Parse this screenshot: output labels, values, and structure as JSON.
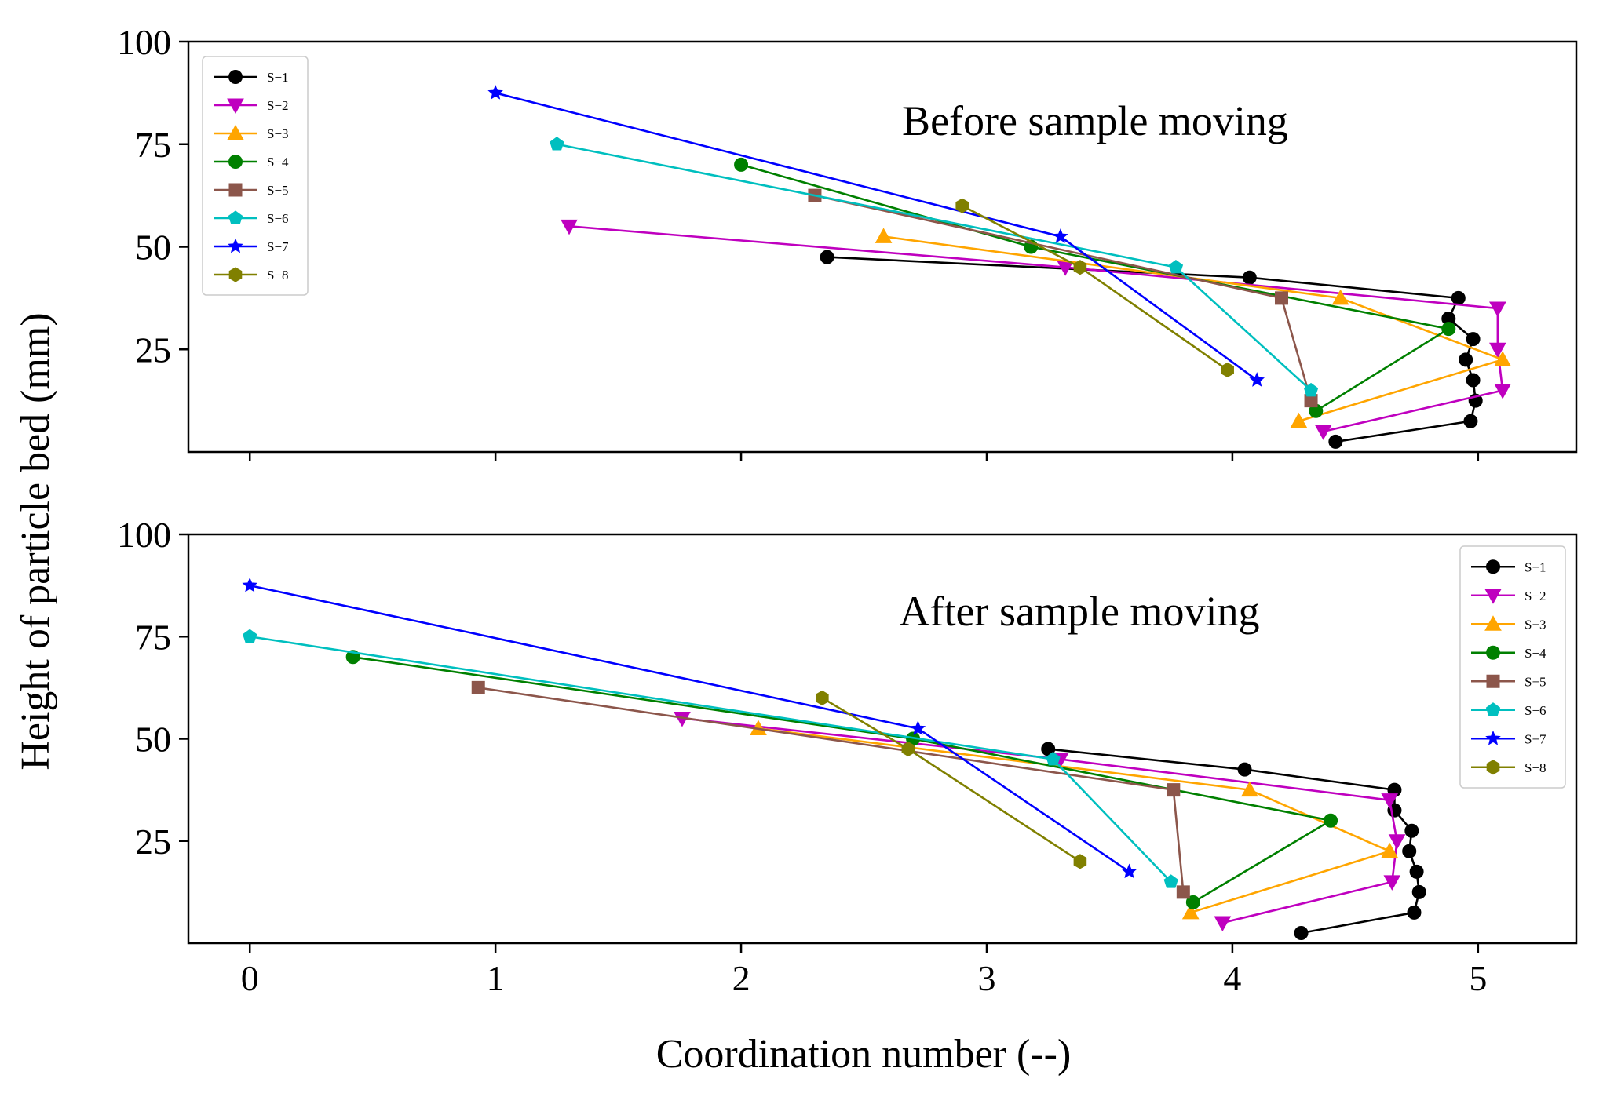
{
  "chart_data": [
    {
      "type": "line",
      "annotation": "Before sample moving",
      "xlabel": "Coordination number (--)",
      "ylabel": "Height of particle bed (mm)",
      "xlim": [
        -0.25,
        5.4
      ],
      "ylim": [
        0,
        100
      ],
      "xticks": [
        "0",
        "1",
        "2",
        "3",
        "4",
        "5"
      ],
      "yticks": [
        "25",
        "50",
        "75",
        "100"
      ],
      "legend_position": "upper-left",
      "series": [
        {
          "name": "S−1",
          "color": "#000000",
          "marker": "circle",
          "points": [
            [
              2.35,
              47.5
            ],
            [
              4.07,
              42.5
            ],
            [
              4.92,
              37.5
            ],
            [
              4.88,
              32.5
            ],
            [
              4.98,
              27.5
            ],
            [
              4.95,
              22.5
            ],
            [
              4.98,
              17.5
            ],
            [
              4.99,
              12.5
            ],
            [
              4.97,
              7.5
            ],
            [
              4.42,
              2.5
            ]
          ]
        },
        {
          "name": "S−2",
          "color": "#bf00bf",
          "marker": "triangle-down",
          "points": [
            [
              1.3,
              55
            ],
            [
              3.32,
              45
            ],
            [
              5.08,
              35
            ],
            [
              5.08,
              25
            ],
            [
              5.1,
              15
            ],
            [
              4.37,
              5
            ]
          ]
        },
        {
          "name": "S−3",
          "color": "#ffa500",
          "marker": "triangle-up",
          "points": [
            [
              2.58,
              52.5
            ],
            [
              4.44,
              37.5
            ],
            [
              5.1,
              22.5
            ],
            [
              4.27,
              7.5
            ]
          ]
        },
        {
          "name": "S−4",
          "color": "#008000",
          "marker": "circle",
          "points": [
            [
              2.0,
              70
            ],
            [
              3.18,
              50
            ],
            [
              4.88,
              30
            ],
            [
              4.34,
              10
            ]
          ]
        },
        {
          "name": "S−5",
          "color": "#8c564b",
          "marker": "square",
          "points": [
            [
              2.3,
              62.5
            ],
            [
              4.2,
              37.5
            ],
            [
              4.32,
              12.5
            ]
          ]
        },
        {
          "name": "S−6",
          "color": "#00bfbf",
          "marker": "pentagon",
          "points": [
            [
              1.25,
              75
            ],
            [
              3.77,
              45
            ],
            [
              4.32,
              15
            ]
          ]
        },
        {
          "name": "S−7",
          "color": "#0000ff",
          "marker": "star",
          "points": [
            [
              1.0,
              87.5
            ],
            [
              3.3,
              52.5
            ],
            [
              4.1,
              17.5
            ]
          ]
        },
        {
          "name": "S−8",
          "color": "#808000",
          "marker": "hexagon",
          "points": [
            [
              2.9,
              60
            ],
            [
              3.38,
              45
            ],
            [
              3.98,
              20
            ]
          ]
        }
      ]
    },
    {
      "type": "line",
      "annotation": "After sample moving",
      "xlabel": "Coordination number (--)",
      "ylabel": "Height of particle bed (mm)",
      "xlim": [
        -0.25,
        5.4
      ],
      "ylim": [
        0,
        100
      ],
      "xticks": [
        "0",
        "1",
        "2",
        "3",
        "4",
        "5"
      ],
      "yticks": [
        "25",
        "50",
        "75",
        "100"
      ],
      "legend_position": "upper-right",
      "series": [
        {
          "name": "S−1",
          "color": "#000000",
          "marker": "circle",
          "points": [
            [
              3.25,
              47.5
            ],
            [
              4.05,
              42.5
            ],
            [
              4.66,
              37.5
            ],
            [
              4.66,
              32.5
            ],
            [
              4.73,
              27.5
            ],
            [
              4.72,
              22.5
            ],
            [
              4.75,
              17.5
            ],
            [
              4.76,
              12.5
            ],
            [
              4.74,
              7.5
            ],
            [
              4.28,
              2.5
            ]
          ]
        },
        {
          "name": "S−2",
          "color": "#bf00bf",
          "marker": "triangle-down",
          "points": [
            [
              1.76,
              55
            ],
            [
              3.3,
              45
            ],
            [
              4.64,
              35
            ],
            [
              4.67,
              25
            ],
            [
              4.65,
              15
            ],
            [
              3.96,
              5
            ]
          ]
        },
        {
          "name": "S−3",
          "color": "#ffa500",
          "marker": "triangle-up",
          "points": [
            [
              2.07,
              52.5
            ],
            [
              4.07,
              37.5
            ],
            [
              4.64,
              22.5
            ],
            [
              3.83,
              7.5
            ]
          ]
        },
        {
          "name": "S−4",
          "color": "#008000",
          "marker": "circle",
          "points": [
            [
              0.42,
              70
            ],
            [
              2.7,
              50
            ],
            [
              4.4,
              30
            ],
            [
              3.84,
              10
            ]
          ]
        },
        {
          "name": "S−5",
          "color": "#8c564b",
          "marker": "square",
          "points": [
            [
              0.93,
              62.5
            ],
            [
              3.76,
              37.5
            ],
            [
              3.8,
              12.5
            ]
          ]
        },
        {
          "name": "S−6",
          "color": "#00bfbf",
          "marker": "pentagon",
          "points": [
            [
              0.0,
              75
            ],
            [
              3.27,
              45
            ],
            [
              3.75,
              15
            ]
          ]
        },
        {
          "name": "S−7",
          "color": "#0000ff",
          "marker": "star",
          "points": [
            [
              0.0,
              87.5
            ],
            [
              2.72,
              52.5
            ],
            [
              3.58,
              17.5
            ]
          ]
        },
        {
          "name": "S−8",
          "color": "#808000",
          "marker": "hexagon",
          "points": [
            [
              2.33,
              60
            ],
            [
              2.68,
              47.5
            ],
            [
              3.38,
              20
            ]
          ]
        }
      ]
    }
  ]
}
